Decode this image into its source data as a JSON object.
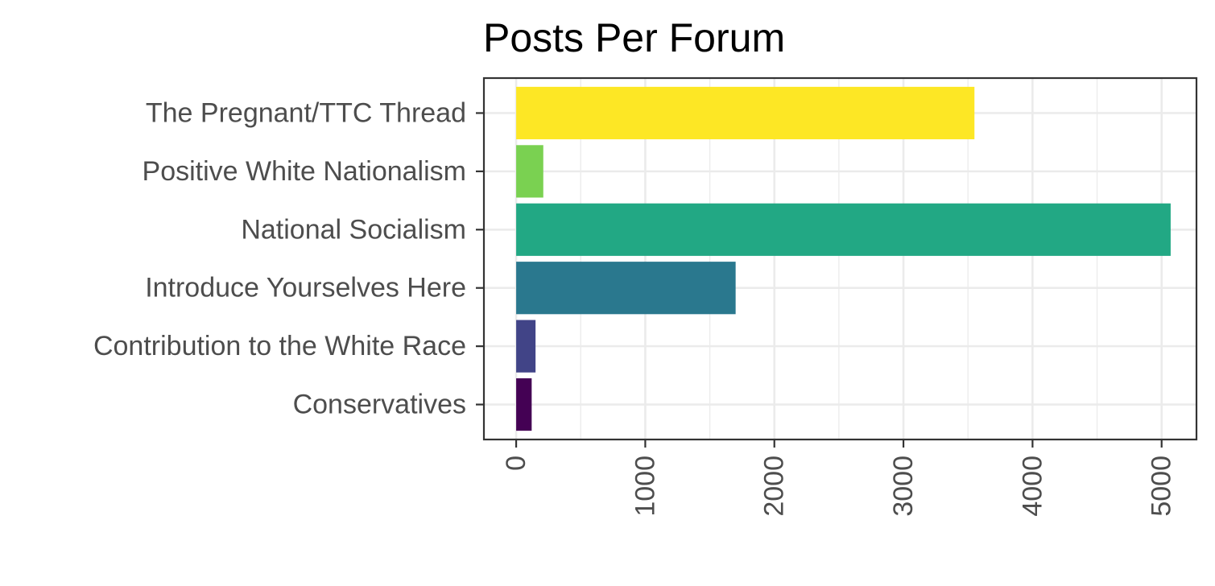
{
  "chart_data": {
    "type": "bar",
    "orientation": "horizontal",
    "title": "Posts Per Forum",
    "xlabel": "",
    "ylabel": "",
    "categories": [
      "Conservatives",
      "Contribution to the White Race",
      "Introduce Yourselves Here",
      "National Socialism",
      "Positive White Nationalism",
      "The Pregnant/TTC Thread"
    ],
    "values": [
      120,
      150,
      1700,
      5070,
      210,
      3550
    ],
    "colors": [
      "#440154",
      "#414487",
      "#2a788e",
      "#22a884",
      "#7ad151",
      "#fde725"
    ],
    "xlim": [
      -250,
      5270
    ],
    "x_ticks": [
      0,
      1000,
      2000,
      3000,
      4000,
      5000
    ],
    "x_tick_labels": [
      "0",
      "1000",
      "2000",
      "3000",
      "4000",
      "5000"
    ],
    "grid": true,
    "theme": "bw",
    "legend": "none",
    "x_tick_label_rotation": "vertical"
  }
}
